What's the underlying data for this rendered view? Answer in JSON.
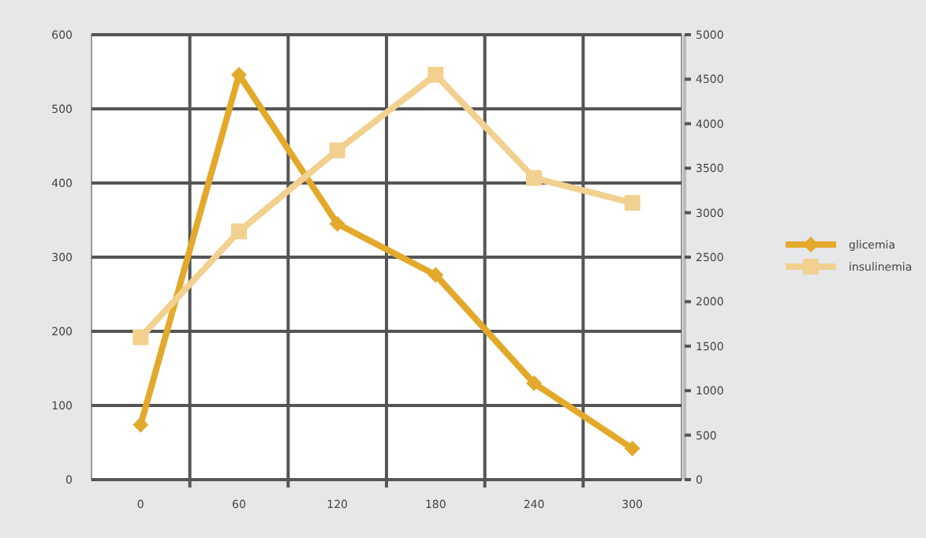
{
  "chart_data": {
    "type": "line",
    "categories": [
      "0",
      "60",
      "120",
      "180",
      "240",
      "300"
    ],
    "ylim": [
      0,
      600
    ],
    "yticks": [
      0,
      100,
      200,
      300,
      400,
      500,
      600
    ],
    "y2lim": [
      0,
      5000
    ],
    "y2ticks": [
      0,
      500,
      1000,
      1500,
      2000,
      2500,
      3000,
      3500,
      4000,
      4500,
      5000
    ],
    "grid": true,
    "legend": "right",
    "series": [
      {
        "name": "glicemia",
        "color": "#e3a92b",
        "marker": "diamond",
        "values": [
          74,
          546,
          345,
          276,
          130,
          42
        ]
      },
      {
        "name": "insulinemia",
        "color": "#f2d08f",
        "marker": "square",
        "axis": "y2",
        "values": [
          1600,
          2790,
          3700,
          4550,
          3390,
          3110
        ]
      }
    ]
  }
}
